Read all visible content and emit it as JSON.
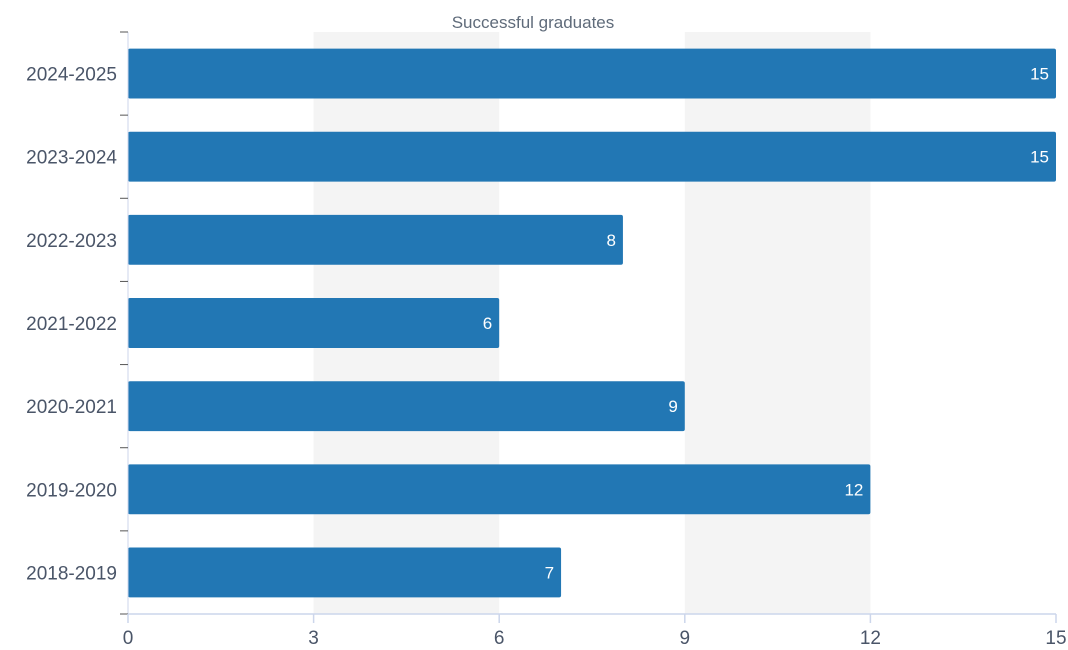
{
  "chart_data": {
    "type": "bar",
    "orientation": "horizontal",
    "title": "Successful graduates",
    "categories": [
      "2024-2025",
      "2023-2024",
      "2022-2023",
      "2021-2022",
      "2020-2021",
      "2019-2020",
      "2018-2019"
    ],
    "values": [
      15,
      15,
      8,
      6,
      9,
      12,
      7
    ],
    "xlim": [
      0,
      15
    ],
    "xticks": [
      0,
      3,
      6,
      9,
      12,
      15
    ],
    "xlabel": "",
    "ylabel": "",
    "grid": "alternating vertical bands",
    "legend": "none",
    "data_labels": true
  },
  "colors": {
    "bar": "#2277b4",
    "band": "#f4f4f4",
    "axis": "#ccd6eb",
    "tick_mark": "#555555"
  }
}
